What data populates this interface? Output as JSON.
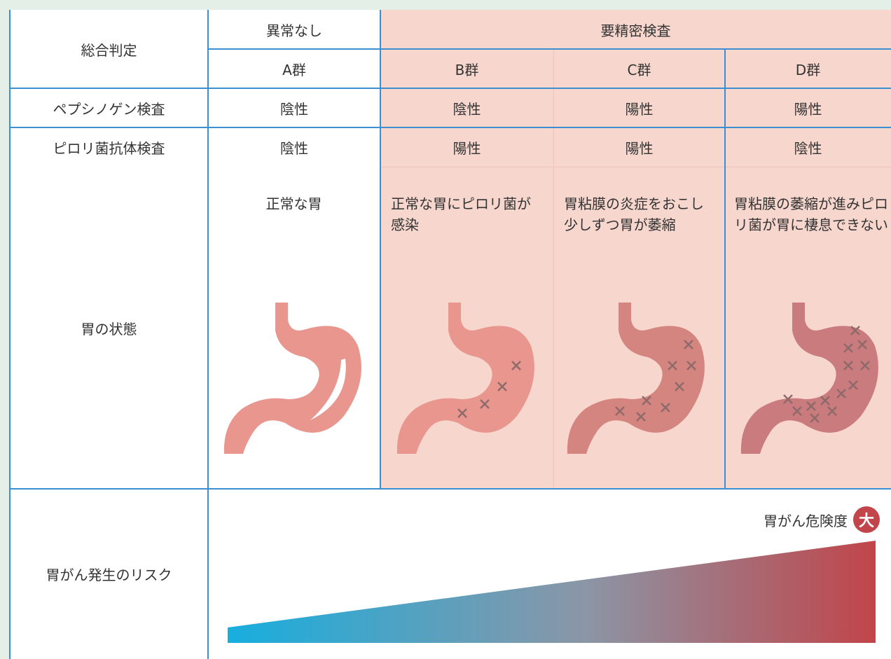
{
  "table": {
    "header": {
      "label": "総合判定",
      "normal": "異常なし",
      "detailed": "要精密検査",
      "groups": [
        "A群",
        "B群",
        "C群",
        "D群"
      ]
    },
    "rows": [
      {
        "label": "ペプシノゲン検査",
        "cells": [
          "陰性",
          "陰性",
          "陽性",
          "陽性"
        ]
      },
      {
        "label": "ピロリ菌抗体検査",
        "cells": [
          "陰性",
          "陽性",
          "陽性",
          "陰性"
        ]
      },
      {
        "label": "胃の状態",
        "cells": [
          "正常な胃",
          "正常な胃にピロリ菌が感染",
          "胃粘膜の炎症をおこし少しずつ胃が萎縮",
          "胃粘膜の萎縮が進みピロリ菌が胃に棲息できない"
        ]
      }
    ],
    "risk": {
      "label": "胃がん発生のリスク",
      "caption": "胃がん危険度",
      "level": "大"
    }
  }
}
